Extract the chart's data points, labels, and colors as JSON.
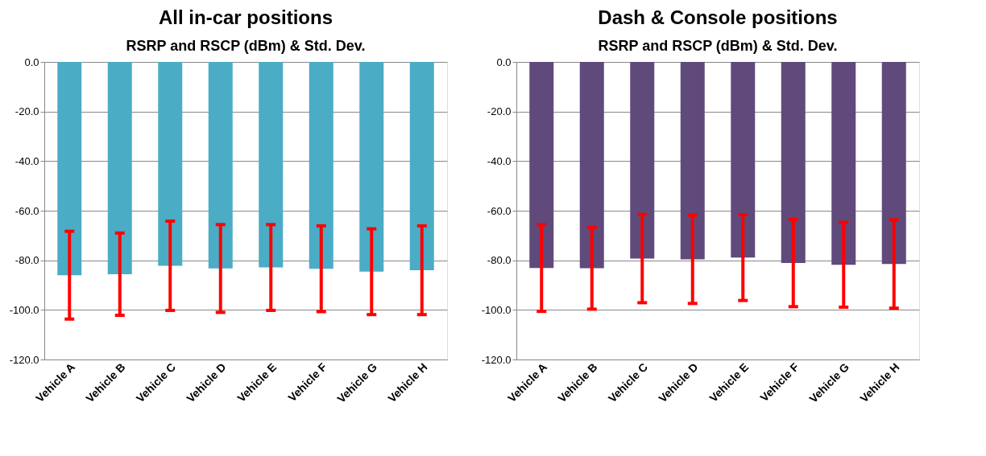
{
  "chart_data": [
    {
      "type": "bar",
      "title": "All in-car positions",
      "subtitle": "RSRP and RSCP (dBm) & Std. Dev.",
      "categories": [
        "Vehicle A",
        "Vehicle B",
        "Vehicle C",
        "Vehicle D",
        "Vehicle E",
        "Vehicle F",
        "Vehicle G",
        "Vehicle H"
      ],
      "series": [
        {
          "color": "#4bacc6",
          "values": [
            -86.0,
            -85.6,
            -82.2,
            -83.3,
            -82.9,
            -83.4,
            -84.6,
            -84.0
          ],
          "errors": [
            17.7,
            16.6,
            18.0,
            17.7,
            17.3,
            17.3,
            17.3,
            17.9
          ]
        }
      ],
      "ylim": [
        -120,
        0
      ],
      "yticks": [
        {
          "value": -120,
          "label": "-120.0"
        },
        {
          "value": -100,
          "label": "-100.0"
        },
        {
          "value": -80,
          "label": "-80.0"
        },
        {
          "value": -60,
          "label": "-60.0"
        },
        {
          "value": -40,
          "label": "-40.0"
        },
        {
          "value": -20,
          "label": "-20.0"
        },
        {
          "value": 0,
          "label": "0.0"
        }
      ],
      "grid": "y"
    },
    {
      "type": "bar",
      "title": "Dash & Console positions",
      "subtitle": "RSRP and RSCP (dBm) & Std. Dev.",
      "categories": [
        "Vehicle A",
        "Vehicle B",
        "Vehicle C",
        "Vehicle D",
        "Vehicle E",
        "Vehicle F",
        "Vehicle G",
        "Vehicle H"
      ],
      "series": [
        {
          "color": "#604a7b",
          "values": [
            -83.1,
            -83.2,
            -79.3,
            -79.6,
            -78.9,
            -81.1,
            -81.8,
            -81.5
          ],
          "errors": [
            17.5,
            16.5,
            17.8,
            17.8,
            17.3,
            17.6,
            17.1,
            17.8
          ]
        }
      ],
      "ylim": [
        -120,
        0
      ],
      "yticks": [
        {
          "value": -120,
          "label": "-120.0"
        },
        {
          "value": -100,
          "label": "-100.0"
        },
        {
          "value": -80,
          "label": "-80.0"
        },
        {
          "value": -60,
          "label": "-60.0"
        },
        {
          "value": -40,
          "label": "-40.0"
        },
        {
          "value": -20,
          "label": "-20.0"
        },
        {
          "value": 0,
          "label": "0.0"
        }
      ],
      "grid": "y"
    }
  ]
}
